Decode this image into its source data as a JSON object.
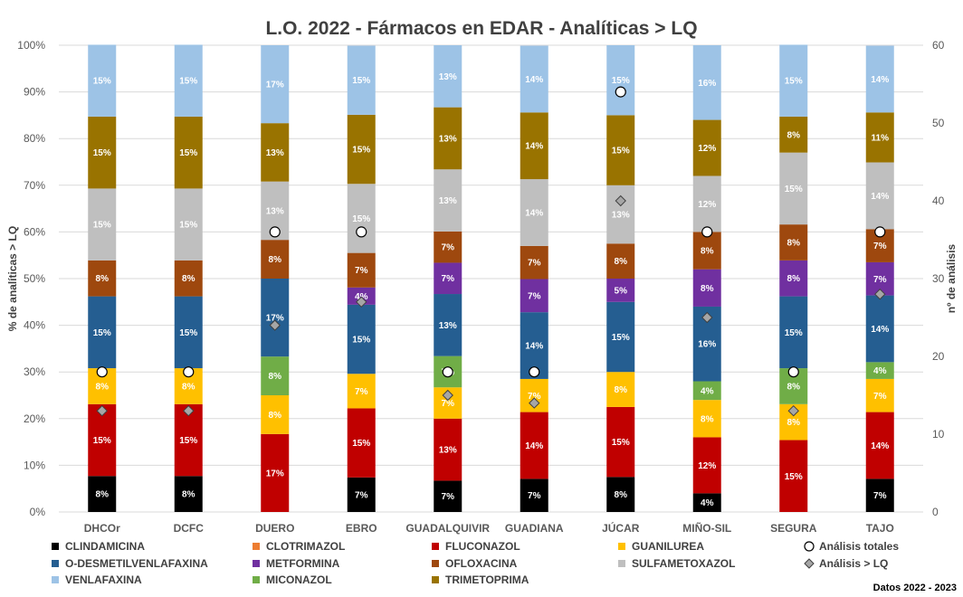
{
  "chart_data": {
    "type": "bar",
    "stacked": true,
    "title": "L.O. 2022 - Fármacos en EDAR - Analíticas > LQ",
    "ylabel": "% de analíticas > LQ",
    "y2label": "nº de análisis",
    "ylim": [
      0,
      100
    ],
    "y2lim": [
      0,
      60
    ],
    "yticks": [
      "0%",
      "10%",
      "20%",
      "30%",
      "40%",
      "50%",
      "60%",
      "70%",
      "80%",
      "90%",
      "100%"
    ],
    "y2ticks": [
      "0",
      "10",
      "20",
      "30",
      "40",
      "50",
      "60"
    ],
    "footnote": "Datos 2022 - 2023",
    "categories": [
      "DHCOr",
      "DCFC",
      "DUERO",
      "EBRO",
      "GUADALQUIVIR",
      "GUADIANA",
      "JÚCAR",
      "MIÑO-SIL",
      "SEGURA",
      "TAJO"
    ],
    "series": [
      {
        "name": "CLINDAMICINA",
        "color": "#000000",
        "label_color": "#ffffff",
        "values": [
          7.7,
          7.7,
          0,
          7.4,
          6.7,
          7.1,
          7.5,
          4.0,
          0,
          7.1
        ],
        "labels": [
          "8%",
          "8%",
          "",
          "7%",
          "7%",
          "7%",
          "8%",
          "4%",
          "",
          "7%"
        ]
      },
      {
        "name": "CLOTRIMAZOL",
        "color": "#ed7d31",
        "label_color": "#ffffff",
        "values": [
          0,
          0,
          0,
          0,
          0,
          0,
          0,
          0,
          0,
          0
        ],
        "labels": [
          "",
          "",
          "",
          "",
          "",
          "",
          "",
          "",
          "",
          ""
        ]
      },
      {
        "name": "FLUCONAZOL",
        "color": "#c00000",
        "label_color": "#ffffff",
        "values": [
          15.4,
          15.4,
          16.7,
          14.8,
          13.3,
          14.3,
          15.0,
          12.0,
          15.4,
          14.3
        ],
        "labels": [
          "15%",
          "15%",
          "17%",
          "15%",
          "13%",
          "14%",
          "15%",
          "12%",
          "15%",
          "14%"
        ]
      },
      {
        "name": "GUANILUREA",
        "color": "#ffc000",
        "label_color": "#ffffff",
        "values": [
          7.7,
          7.7,
          8.3,
          7.4,
          6.7,
          7.1,
          7.5,
          8.0,
          7.7,
          7.1
        ],
        "labels": [
          "8%",
          "8%",
          "8%",
          "7%",
          "7%",
          "7%",
          "8%",
          "8%",
          "8%",
          "7%"
        ]
      },
      {
        "name": "MICONAZOL",
        "color": "#70ad47",
        "label_color": "#ffffff",
        "values": [
          0,
          0,
          8.3,
          0,
          6.7,
          0,
          0,
          4.0,
          7.7,
          3.6
        ],
        "labels": [
          "",
          "",
          "8%",
          "",
          "7%",
          "",
          "",
          "4%",
          "8%",
          "4%"
        ]
      },
      {
        "name": "O-DESMETILVENLAFAXINA",
        "color": "#255e91",
        "label_color": "#ffffff",
        "values": [
          15.4,
          15.4,
          16.7,
          14.8,
          13.3,
          14.3,
          15.0,
          16.0,
          15.4,
          14.3
        ],
        "labels": [
          "15%",
          "15%",
          "17%",
          "15%",
          "13%",
          "14%",
          "15%",
          "16%",
          "15%",
          "14%"
        ]
      },
      {
        "name": "METFORMINA",
        "color": "#7030a0",
        "label_color": "#ffffff",
        "values": [
          0,
          0,
          0,
          3.7,
          6.7,
          7.1,
          5.0,
          8.0,
          7.7,
          7.1
        ],
        "labels": [
          "",
          "",
          "",
          "4%",
          "7%",
          "7%",
          "5%",
          "8%",
          "8%",
          "7%"
        ]
      },
      {
        "name": "OFLOXACINA",
        "color": "#9e480e",
        "label_color": "#ffffff",
        "values": [
          7.7,
          7.7,
          8.3,
          7.4,
          6.7,
          7.1,
          7.5,
          8.0,
          7.7,
          7.1
        ],
        "labels": [
          "8%",
          "8%",
          "8%",
          "7%",
          "7%",
          "7%",
          "8%",
          "8%",
          "8%",
          "7%"
        ]
      },
      {
        "name": "SULFAMETOXAZOL",
        "color": "#bfbfbf",
        "label_color": "#ffffff",
        "values": [
          15.4,
          15.4,
          12.5,
          14.8,
          13.3,
          14.3,
          12.5,
          12.0,
          15.4,
          14.3
        ],
        "labels": [
          "15%",
          "15%",
          "13%",
          "15%",
          "13%",
          "14%",
          "13%",
          "12%",
          "15%",
          "14%"
        ]
      },
      {
        "name": "TRIMETOPRIMA",
        "color": "#997300",
        "label_color": "#ffffff",
        "values": [
          15.4,
          15.4,
          12.5,
          14.8,
          13.3,
          14.3,
          15.0,
          12.0,
          7.7,
          10.7
        ],
        "labels": [
          "15%",
          "15%",
          "13%",
          "15%",
          "13%",
          "14%",
          "15%",
          "12%",
          "8%",
          "11%"
        ]
      },
      {
        "name": "VENLAFAXINA",
        "color": "#9dc3e6",
        "label_color": "#ffffff",
        "values": [
          15.4,
          15.4,
          16.7,
          14.8,
          13.3,
          14.3,
          15.0,
          16.0,
          15.4,
          14.3
        ],
        "labels": [
          "15%",
          "15%",
          "17%",
          "15%",
          "13%",
          "14%",
          "15%",
          "16%",
          "15%",
          "14%"
        ]
      }
    ],
    "markers": [
      {
        "name": "Análisis totales",
        "shape": "circle",
        "fill": "#ffffff",
        "stroke": "#000000",
        "axis": "secondary",
        "values": [
          18,
          18,
          36,
          36,
          18,
          18,
          54,
          36,
          18,
          36
        ]
      },
      {
        "name": "Análisis > LQ",
        "shape": "diamond",
        "fill": "#a6a6a6",
        "stroke": "#404040",
        "axis": "secondary",
        "values": [
          13,
          13,
          24,
          27,
          15,
          14,
          40,
          25,
          13,
          28
        ]
      }
    ],
    "legend": {
      "position": "bottom",
      "rows": [
        [
          "CLINDAMICINA",
          "CLOTRIMAZOL",
          "FLUCONAZOL",
          "GUANILUREA",
          "Análisis totales"
        ],
        [
          "O-DESMETILVENLAFAXINA",
          "METFORMINA",
          "OFLOXACINA",
          "SULFAMETOXAZOL",
          "Análisis > LQ"
        ],
        [
          "VENLAFAXINA",
          "MICONAZOL",
          "TRIMETOPRIMA"
        ]
      ]
    }
  }
}
